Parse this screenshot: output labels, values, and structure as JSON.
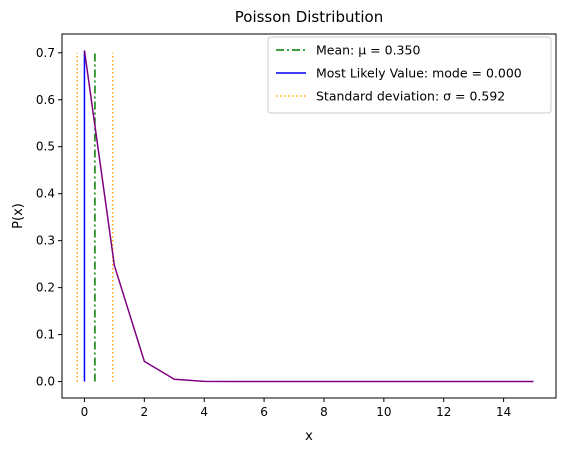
{
  "chart_data": {
    "type": "line",
    "title": "Poisson Distribution",
    "xlabel": "x",
    "ylabel": "P(x)",
    "xlim": [
      -0.75,
      15.75
    ],
    "ylim": [
      -0.035,
      0.74
    ],
    "x_ticks": [
      0,
      2,
      4,
      6,
      8,
      10,
      12,
      14
    ],
    "x_tick_labels": [
      "0",
      "2",
      "4",
      "6",
      "8",
      "10",
      "12",
      "14"
    ],
    "y_ticks": [
      0.0,
      0.1,
      0.2,
      0.3,
      0.4,
      0.5,
      0.6,
      0.7
    ],
    "y_tick_labels": [
      "0.0",
      "0.1",
      "0.2",
      "0.3",
      "0.4",
      "0.5",
      "0.6",
      "0.7"
    ],
    "grid": false,
    "legend_position": "top-right",
    "series": [
      {
        "color": "#800080",
        "x": [
          0,
          1,
          2,
          3,
          4,
          5,
          6,
          7,
          8,
          9,
          10,
          11,
          12,
          13,
          14,
          15
        ],
        "values": [
          0.705,
          0.247,
          0.043,
          0.005,
          0.0004,
          3e-05,
          0.0,
          0.0,
          0.0,
          0.0,
          0.0,
          0.0,
          0.0,
          0.0,
          0.0,
          0.0
        ]
      }
    ],
    "reference_lines": [
      {
        "label": "Mean: μ = 0.350",
        "x": 0.35,
        "y_range": [
          0,
          0.705
        ],
        "color": "#008000",
        "style": "dashdot",
        "in_legend": true
      },
      {
        "label": "Most Likely Value: mode = 0.000",
        "x": 0.0,
        "y_range": [
          0,
          0.705
        ],
        "color": "#0000ff",
        "style": "solid",
        "in_legend": true
      },
      {
        "label": "Standard deviation: σ = 0.592",
        "x": -0.242,
        "y_range": [
          0,
          0.7
        ],
        "color": "#ffa500",
        "style": "dotted",
        "in_legend": true
      },
      {
        "label": "Standard deviation: σ = 0.592",
        "x": 0.942,
        "y_range": [
          0,
          0.7
        ],
        "color": "#ffa500",
        "style": "dotted",
        "in_legend": false
      }
    ]
  }
}
